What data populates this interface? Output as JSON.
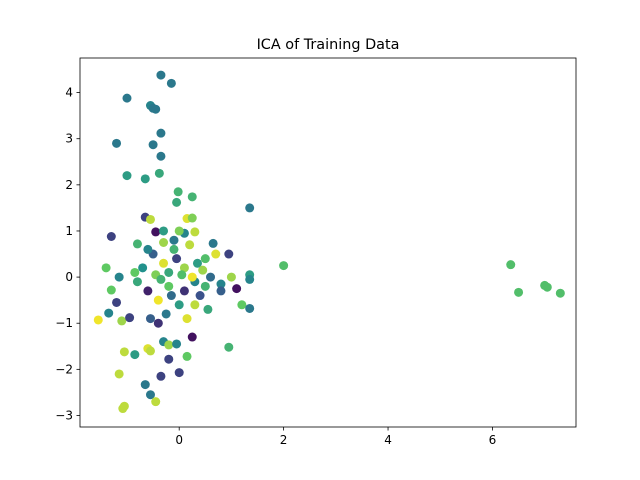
{
  "chart_data": {
    "type": "scatter",
    "title": "ICA of Training Data",
    "xlabel": "",
    "ylabel": "",
    "xlim": [
      -1.9,
      7.6
    ],
    "ylim": [
      -3.25,
      4.75
    ],
    "xticks": [
      0,
      2,
      4,
      6
    ],
    "yticks": [
      -3,
      -2,
      -1,
      0,
      1,
      2,
      3,
      4
    ],
    "grid": false,
    "legend": "none",
    "colormap": "viridis",
    "points": [
      {
        "x": -0.35,
        "y": 4.38,
        "c": 0.4
      },
      {
        "x": -0.15,
        "y": 4.2,
        "c": 0.4
      },
      {
        "x": -1.0,
        "y": 3.88,
        "c": 0.4
      },
      {
        "x": -0.55,
        "y": 3.72,
        "c": 0.45
      },
      {
        "x": -0.5,
        "y": 3.66,
        "c": 0.4
      },
      {
        "x": -0.45,
        "y": 3.64,
        "c": 0.4
      },
      {
        "x": -0.35,
        "y": 3.12,
        "c": 0.4
      },
      {
        "x": -1.2,
        "y": 2.9,
        "c": 0.4
      },
      {
        "x": -0.5,
        "y": 2.87,
        "c": 0.4
      },
      {
        "x": -0.35,
        "y": 2.62,
        "c": 0.4
      },
      {
        "x": -1.0,
        "y": 2.2,
        "c": 0.55
      },
      {
        "x": -0.38,
        "y": 2.25,
        "c": 0.6
      },
      {
        "x": -0.65,
        "y": 2.13,
        "c": 0.55
      },
      {
        "x": -0.02,
        "y": 1.85,
        "c": 0.65
      },
      {
        "x": 0.25,
        "y": 1.74,
        "c": 0.65
      },
      {
        "x": -0.05,
        "y": 1.62,
        "c": 0.6
      },
      {
        "x": 1.35,
        "y": 1.5,
        "c": 0.4
      },
      {
        "x": -0.65,
        "y": 1.3,
        "c": 0.2
      },
      {
        "x": -0.55,
        "y": 1.25,
        "c": 0.9
      },
      {
        "x": 0.15,
        "y": 1.27,
        "c": 0.95
      },
      {
        "x": 0.25,
        "y": 1.28,
        "c": 0.8
      },
      {
        "x": -1.3,
        "y": 0.88,
        "c": 0.2
      },
      {
        "x": -0.45,
        "y": 0.98,
        "c": 0.05
      },
      {
        "x": 0.1,
        "y": 0.95,
        "c": 0.45
      },
      {
        "x": 0.3,
        "y": 0.98,
        "c": 0.9
      },
      {
        "x": -0.8,
        "y": 0.72,
        "c": 0.65
      },
      {
        "x": -0.3,
        "y": 0.75,
        "c": 0.85
      },
      {
        "x": 0.65,
        "y": 0.73,
        "c": 0.4
      },
      {
        "x": 0.95,
        "y": 0.5,
        "c": 0.2
      },
      {
        "x": -1.4,
        "y": 0.2,
        "c": 0.75
      },
      {
        "x": -0.85,
        "y": 0.1,
        "c": 0.75
      },
      {
        "x": -1.15,
        "y": 0.0,
        "c": 0.45
      },
      {
        "x": 1.0,
        "y": 0.0,
        "c": 0.85
      },
      {
        "x": 1.35,
        "y": 0.05,
        "c": 0.55
      },
      {
        "x": 1.35,
        "y": -0.05,
        "c": 0.45
      },
      {
        "x": 1.1,
        "y": -0.25,
        "c": 0.05
      },
      {
        "x": 0.8,
        "y": -0.15,
        "c": 0.45
      },
      {
        "x": -1.3,
        "y": -0.28,
        "c": 0.75
      },
      {
        "x": -1.2,
        "y": -0.55,
        "c": 0.2
      },
      {
        "x": 1.2,
        "y": -0.6,
        "c": 0.75
      },
      {
        "x": 1.35,
        "y": -0.68,
        "c": 0.4
      },
      {
        "x": -1.55,
        "y": -0.93,
        "c": 0.98
      },
      {
        "x": -1.1,
        "y": -0.95,
        "c": 0.85
      },
      {
        "x": -0.95,
        "y": -0.88,
        "c": 0.2
      },
      {
        "x": -1.35,
        "y": -0.78,
        "c": 0.45
      },
      {
        "x": 0.95,
        "y": -1.52,
        "c": 0.65
      },
      {
        "x": 0.25,
        "y": -1.3,
        "c": 0.05
      },
      {
        "x": -0.3,
        "y": -1.4,
        "c": 0.45
      },
      {
        "x": -0.6,
        "y": -1.55,
        "c": 0.95
      },
      {
        "x": -0.2,
        "y": -1.47,
        "c": 0.85
      },
      {
        "x": -0.05,
        "y": -1.45,
        "c": 0.45
      },
      {
        "x": -0.55,
        "y": -1.6,
        "c": 0.9
      },
      {
        "x": -1.05,
        "y": -1.62,
        "c": 0.9
      },
      {
        "x": -0.85,
        "y": -1.68,
        "c": 0.55
      },
      {
        "x": -0.2,
        "y": -1.78,
        "c": 0.2
      },
      {
        "x": 0.15,
        "y": -1.72,
        "c": 0.75
      },
      {
        "x": -1.15,
        "y": -2.1,
        "c": 0.9
      },
      {
        "x": 0.0,
        "y": -2.07,
        "c": 0.2
      },
      {
        "x": -0.35,
        "y": -2.15,
        "c": 0.2
      },
      {
        "x": -0.65,
        "y": -2.33,
        "c": 0.4
      },
      {
        "x": -0.55,
        "y": -2.55,
        "c": 0.4
      },
      {
        "x": -0.45,
        "y": -2.7,
        "c": 0.9
      },
      {
        "x": -1.05,
        "y": -2.8,
        "c": 0.9
      },
      {
        "x": -1.08,
        "y": -2.85,
        "c": 0.9
      },
      {
        "x": 2.0,
        "y": 0.25,
        "c": 0.7
      },
      {
        "x": 6.35,
        "y": 0.27,
        "c": 0.7
      },
      {
        "x": 6.5,
        "y": -0.33,
        "c": 0.7
      },
      {
        "x": 7.0,
        "y": -0.18,
        "c": 0.7
      },
      {
        "x": 7.05,
        "y": -0.22,
        "c": 0.7
      },
      {
        "x": 7.3,
        "y": -0.35,
        "c": 0.7
      },
      {
        "x": -0.5,
        "y": 0.5,
        "c": 0.3
      },
      {
        "x": -0.3,
        "y": 0.3,
        "c": 0.95
      },
      {
        "x": -0.2,
        "y": 0.1,
        "c": 0.6
      },
      {
        "x": 0.1,
        "y": 0.2,
        "c": 0.85
      },
      {
        "x": 0.3,
        "y": -0.1,
        "c": 0.45
      },
      {
        "x": 0.5,
        "y": 0.4,
        "c": 0.7
      },
      {
        "x": -0.6,
        "y": -0.3,
        "c": 0.1
      },
      {
        "x": -0.4,
        "y": -0.5,
        "c": 0.98
      },
      {
        "x": 0.0,
        "y": -0.6,
        "c": 0.55
      },
      {
        "x": 0.4,
        "y": -0.4,
        "c": 0.25
      },
      {
        "x": -0.1,
        "y": 0.6,
        "c": 0.65
      },
      {
        "x": 0.2,
        "y": 0.7,
        "c": 0.9
      },
      {
        "x": -0.7,
        "y": 0.2,
        "c": 0.5
      },
      {
        "x": 0.6,
        "y": 0.0,
        "c": 0.35
      },
      {
        "x": -0.2,
        "y": -0.2,
        "c": 0.75
      },
      {
        "x": 0.1,
        "y": -0.3,
        "c": 0.15
      },
      {
        "x": -0.45,
        "y": 0.05,
        "c": 0.8
      },
      {
        "x": 0.35,
        "y": 0.3,
        "c": 0.55
      },
      {
        "x": -0.25,
        "y": -0.8,
        "c": 0.4
      },
      {
        "x": 0.15,
        "y": -0.9,
        "c": 0.95
      },
      {
        "x": -0.55,
        "y": -0.9,
        "c": 0.3
      },
      {
        "x": 0.55,
        "y": -0.7,
        "c": 0.6
      },
      {
        "x": -0.05,
        "y": 0.4,
        "c": 0.2
      },
      {
        "x": 0.25,
        "y": 0.0,
        "c": 0.98
      },
      {
        "x": -0.35,
        "y": -0.05,
        "c": 0.65
      },
      {
        "x": 0.45,
        "y": 0.15,
        "c": 0.85
      },
      {
        "x": -0.15,
        "y": -0.4,
        "c": 0.35
      },
      {
        "x": 0.05,
        "y": 0.05,
        "c": 0.7
      },
      {
        "x": -0.6,
        "y": 0.6,
        "c": 0.45
      },
      {
        "x": 0.7,
        "y": 0.5,
        "c": 0.95
      },
      {
        "x": -0.8,
        "y": -0.1,
        "c": 0.6
      },
      {
        "x": 0.8,
        "y": -0.3,
        "c": 0.3
      },
      {
        "x": -0.3,
        "y": 1.0,
        "c": 0.55
      },
      {
        "x": 0.0,
        "y": 1.0,
        "c": 0.8
      },
      {
        "x": -0.4,
        "y": -1.0,
        "c": 0.15
      },
      {
        "x": 0.3,
        "y": -0.6,
        "c": 0.9
      },
      {
        "x": -0.1,
        "y": 0.8,
        "c": 0.4
      },
      {
        "x": 0.5,
        "y": -0.2,
        "c": 0.65
      }
    ]
  }
}
